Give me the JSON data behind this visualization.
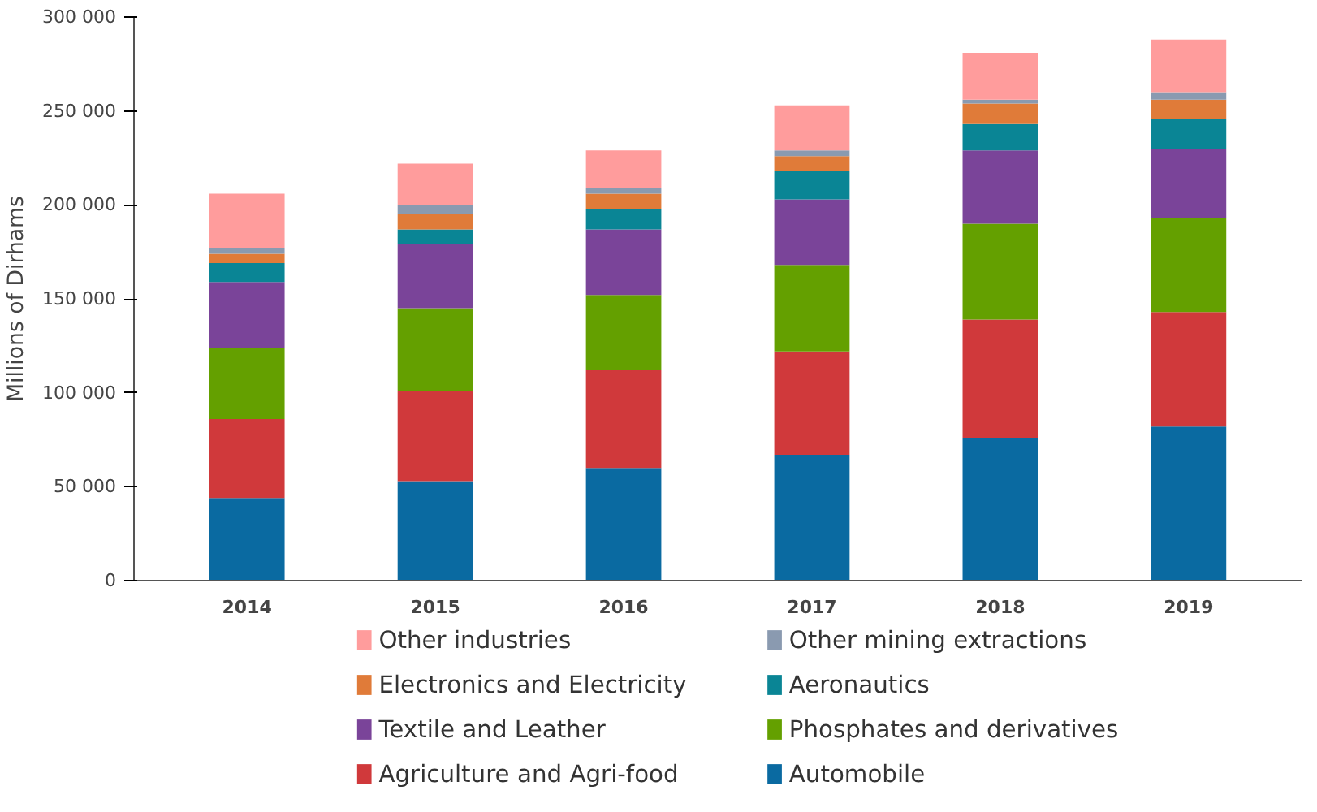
{
  "chart_data": {
    "type": "bar",
    "stacked": true,
    "ylabel": "Millions of Dirhams",
    "categories": [
      "2014",
      "2015",
      "2016",
      "2017",
      "2018",
      "2019"
    ],
    "series": [
      {
        "name": "Automobile",
        "color": "#0a6aa1",
        "values": [
          44000,
          53000,
          60000,
          67000,
          76000,
          82000
        ]
      },
      {
        "name": "Agriculture and Agri-food",
        "color": "#d0393b",
        "values": [
          42000,
          48000,
          52000,
          55000,
          63000,
          61000
        ]
      },
      {
        "name": "Phosphates and derivatives",
        "color": "#64a000",
        "values": [
          38000,
          44000,
          40000,
          46000,
          51000,
          50000
        ]
      },
      {
        "name": "Textile and Leather",
        "color": "#7a4499",
        "values": [
          35000,
          34000,
          35000,
          35000,
          39000,
          37000
        ]
      },
      {
        "name": "Aeronautics",
        "color": "#0a8595",
        "values": [
          10000,
          8000,
          11000,
          15000,
          14000,
          16000
        ]
      },
      {
        "name": "Electronics and Electricity",
        "color": "#e07b39",
        "values": [
          5000,
          8000,
          8000,
          8000,
          11000,
          10000
        ]
      },
      {
        "name": "Other mining extractions",
        "color": "#8a9ab0",
        "values": [
          3000,
          5000,
          3000,
          3000,
          2000,
          4000
        ]
      },
      {
        "name": "Other industries",
        "color": "#ff9c9c",
        "values": [
          29000,
          22000,
          20000,
          24000,
          25000,
          28000
        ]
      }
    ],
    "ylim": [
      0,
      300000
    ],
    "yticks": [
      {
        "value": 0,
        "label": "0"
      },
      {
        "value": 50000,
        "label": "50 000"
      },
      {
        "value": 100000,
        "label": "100 000"
      },
      {
        "value": 150000,
        "label": "150 000"
      },
      {
        "value": 200000,
        "label": "200 000"
      },
      {
        "value": 250000,
        "label": "250 000"
      },
      {
        "value": 300000,
        "label": "300 000"
      }
    ],
    "grid": false,
    "legend": "bottom"
  }
}
